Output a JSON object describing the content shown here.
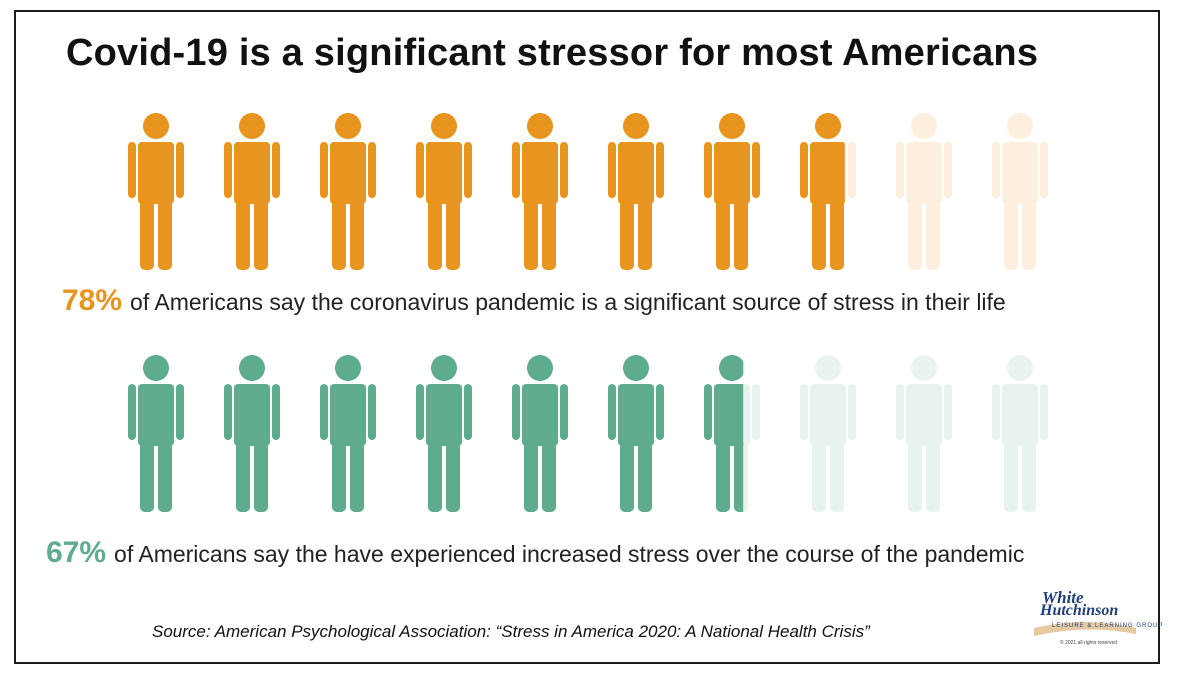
{
  "title": "Covid-19 is a significant stressor for most Americans",
  "stats": [
    {
      "percent_label": "78%",
      "text": "of Americans say the coronavirus pandemic is a significant source of stress in their life",
      "color": "#e8951f",
      "faded_color": "#fcefde"
    },
    {
      "percent_label": "67%",
      "text": "of Americans say the have experienced increased stress over the course of the pandemic",
      "color": "#5fab8d",
      "faded_color": "#e8f3ef"
    }
  ],
  "chart_data": {
    "type": "pictograph",
    "icon": "person-icon",
    "icons_per_row": 10,
    "series": [
      {
        "value": 78,
        "max": 100
      },
      {
        "value": 67,
        "max": 100
      }
    ]
  },
  "source": "Source: American Psychological Association:  “Stress in America 2020: A National Health Crisis”",
  "logo": {
    "line1": "White",
    "line2": "Hutchinson",
    "tagline": "LEISURE & LEARNING GROUP",
    "copyright": "© 2021 all rights reserved"
  }
}
